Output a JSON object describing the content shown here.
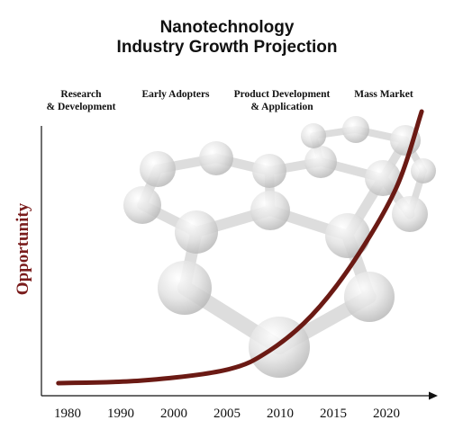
{
  "title": {
    "line1": "Nanotechnology",
    "line2": "Industry Growth Projection"
  },
  "colors": {
    "curve": "#6b1a14",
    "ylabel": "#7a1c1c",
    "axis": "#111111",
    "molecule": "#d6d6d6"
  },
  "chart_data": {
    "type": "line",
    "title": "Nanotechnology Industry Growth Projection",
    "xlabel": "",
    "ylabel": "Opportunity",
    "x_ticks": [
      "1980",
      "1990",
      "2000",
      "2005",
      "2010",
      "2015",
      "2020"
    ],
    "phases": [
      {
        "line1": "Research",
        "line2": "& Development"
      },
      {
        "line1": "Early Adopters",
        "line2": ""
      },
      {
        "line1": "Product Development",
        "line2": "& Application"
      },
      {
        "line1": "Mass Market",
        "line2": ""
      }
    ],
    "y_axis_values_shown": false,
    "curve_shape": "exponential",
    "series": [
      {
        "values": [
          {
            "x": "1980",
            "y": 0.0
          },
          {
            "x": "1990",
            "y": 0.01
          },
          {
            "x": "2000",
            "y": 0.05
          },
          {
            "x": "2005",
            "y": 0.12
          },
          {
            "x": "2010",
            "y": 0.25
          },
          {
            "x": "2015",
            "y": 0.45
          },
          {
            "x": "2020",
            "y": 0.72
          },
          {
            "x": "2023",
            "y": 1.0
          }
        ]
      }
    ],
    "grid": false,
    "legend": "none"
  }
}
